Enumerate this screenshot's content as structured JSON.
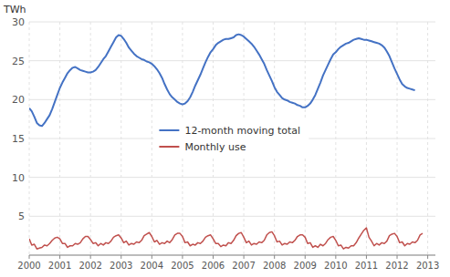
{
  "chart_data": {
    "type": "line",
    "y_label": "TWh",
    "xlim": [
      2000.0,
      2013.25
    ],
    "ylim": [
      0,
      30
    ],
    "xticks": [
      2000,
      2001,
      2002,
      2003,
      2004,
      2005,
      2006,
      2007,
      2008,
      2009,
      2010,
      2011,
      2012,
      2013
    ],
    "yticks": [
      {
        "value": 0,
        "label": null
      },
      5,
      10,
      15,
      20,
      25,
      30
    ],
    "grid": true,
    "legend": "center",
    "series": [
      {
        "name": "12-month moving total",
        "color": "#4472C4",
        "x": [
          2000,
          2000.0833333333,
          2000.1666666667,
          2000.25,
          2000.3333333333,
          2000.4166666667,
          2000.5,
          2000.5833333333,
          2000.6666666667,
          2000.75,
          2000.8333333333,
          2000.9166666667,
          2001,
          2001.0833333333,
          2001.1666666667,
          2001.25,
          2001.3333333333,
          2001.4166666667,
          2001.5,
          2001.5833333333,
          2001.6666666667,
          2001.75,
          2001.8333333333,
          2001.9166666667,
          2002,
          2002.0833333333,
          2002.1666666667,
          2002.25,
          2002.3333333333,
          2002.4166666667,
          2002.5,
          2002.5833333333,
          2002.6666666667,
          2002.75,
          2002.8333333333,
          2002.9166666667,
          2003,
          2003.0833333333,
          2003.1666666667,
          2003.25,
          2003.3333333333,
          2003.4166666667,
          2003.5,
          2003.5833333333,
          2003.6666666667,
          2003.75,
          2003.8333333333,
          2003.9166666667,
          2004,
          2004.0833333333,
          2004.1666666667,
          2004.25,
          2004.3333333333,
          2004.4166666667,
          2004.5,
          2004.5833333333,
          2004.6666666667,
          2004.75,
          2004.8333333333,
          2004.9166666667,
          2005,
          2005.0833333333,
          2005.1666666667,
          2005.25,
          2005.3333333333,
          2005.4166666667,
          2005.5,
          2005.5833333333,
          2005.6666666667,
          2005.75,
          2005.8333333333,
          2005.9166666667,
          2006,
          2006.0833333333,
          2006.1666666667,
          2006.25,
          2006.3333333333,
          2006.4166666667,
          2006.5,
          2006.5833333333,
          2006.6666666667,
          2006.75,
          2006.8333333333,
          2006.9166666667,
          2007,
          2007.0833333333,
          2007.1666666667,
          2007.25,
          2007.3333333333,
          2007.4166666667,
          2007.5,
          2007.5833333333,
          2007.6666666667,
          2007.75,
          2007.8333333333,
          2007.9166666667,
          2008,
          2008.0833333333,
          2008.1666666667,
          2008.25,
          2008.3333333333,
          2008.4166666667,
          2008.5,
          2008.5833333333,
          2008.6666666667,
          2008.75,
          2008.8333333333,
          2008.9166666667,
          2009,
          2009.0833333333,
          2009.1666666667,
          2009.25,
          2009.3333333333,
          2009.4166666667,
          2009.5,
          2009.5833333333,
          2009.6666666667,
          2009.75,
          2009.8333333333,
          2009.9166666667,
          2010,
          2010.0833333333,
          2010.1666666667,
          2010.25,
          2010.3333333333,
          2010.4166666667,
          2010.5,
          2010.5833333333,
          2010.6666666667,
          2010.75,
          2010.8333333333,
          2010.9166666667,
          2011,
          2011.0833333333,
          2011.1666666667,
          2011.25,
          2011.3333333333,
          2011.4166666667,
          2011.5,
          2011.5833333333,
          2011.6666666667,
          2011.75,
          2011.8333333333,
          2011.9166666667,
          2012,
          2012.0833333333,
          2012.1666666667,
          2012.25,
          2012.3333333333,
          2012.4166666667,
          2012.5,
          2012.5833333333
        ],
        "values": [
          18.9,
          18.5,
          17.8,
          17.0,
          16.7,
          16.6,
          17.0,
          17.5,
          18.0,
          18.8,
          19.7,
          20.6,
          21.5,
          22.2,
          22.8,
          23.4,
          23.8,
          24.1,
          24.2,
          24.0,
          23.8,
          23.7,
          23.6,
          23.5,
          23.5,
          23.6,
          23.8,
          24.2,
          24.7,
          25.2,
          25.6,
          26.2,
          26.8,
          27.4,
          28.0,
          28.3,
          28.2,
          27.8,
          27.3,
          26.7,
          26.3,
          25.9,
          25.6,
          25.4,
          25.2,
          25.1,
          24.9,
          24.8,
          24.6,
          24.3,
          23.9,
          23.4,
          22.8,
          22.0,
          21.3,
          20.7,
          20.3,
          20.0,
          19.7,
          19.5,
          19.4,
          19.5,
          19.8,
          20.3,
          21.0,
          21.8,
          22.5,
          23.2,
          24.0,
          24.8,
          25.5,
          26.1,
          26.5,
          27.0,
          27.3,
          27.5,
          27.7,
          27.8,
          27.8,
          27.9,
          28.0,
          28.3,
          28.4,
          28.3,
          28.1,
          27.8,
          27.5,
          27.2,
          26.8,
          26.3,
          25.8,
          25.2,
          24.6,
          23.8,
          23.1,
          22.4,
          21.6,
          21.0,
          20.6,
          20.2,
          20.0,
          19.9,
          19.7,
          19.6,
          19.5,
          19.3,
          19.2,
          19.0,
          19.0,
          19.2,
          19.5,
          20.0,
          20.6,
          21.4,
          22.2,
          23.1,
          23.8,
          24.5,
          25.2,
          25.8,
          26.1,
          26.5,
          26.8,
          27.0,
          27.2,
          27.3,
          27.5,
          27.7,
          27.8,
          27.9,
          27.8,
          27.7,
          27.7,
          27.6,
          27.5,
          27.4,
          27.3,
          27.2,
          27.0,
          26.7,
          26.2,
          25.6,
          24.8,
          24.0,
          23.3,
          22.6,
          22.0,
          21.7,
          21.5,
          21.4,
          21.3,
          21.2
        ]
      },
      {
        "name": "Monthly use",
        "color": "#C0504D",
        "x": [
          2000,
          2000.0833333333,
          2000.1666666667,
          2000.25,
          2000.3333333333,
          2000.4166666667,
          2000.5,
          2000.5833333333,
          2000.6666666667,
          2000.75,
          2000.8333333333,
          2000.9166666667,
          2001,
          2001.0833333333,
          2001.1666666667,
          2001.25,
          2001.3333333333,
          2001.4166666667,
          2001.5,
          2001.5833333333,
          2001.6666666667,
          2001.75,
          2001.8333333333,
          2001.9166666667,
          2002,
          2002.0833333333,
          2002.1666666667,
          2002.25,
          2002.3333333333,
          2002.4166666667,
          2002.5,
          2002.5833333333,
          2002.6666666667,
          2002.75,
          2002.8333333333,
          2002.9166666667,
          2003,
          2003.0833333333,
          2003.1666666667,
          2003.25,
          2003.3333333333,
          2003.4166666667,
          2003.5,
          2003.5833333333,
          2003.6666666667,
          2003.75,
          2003.8333333333,
          2003.9166666667,
          2004,
          2004.0833333333,
          2004.1666666667,
          2004.25,
          2004.3333333333,
          2004.4166666667,
          2004.5,
          2004.5833333333,
          2004.6666666667,
          2004.75,
          2004.8333333333,
          2004.9166666667,
          2005,
          2005.0833333333,
          2005.1666666667,
          2005.25,
          2005.3333333333,
          2005.4166666667,
          2005.5,
          2005.5833333333,
          2005.6666666667,
          2005.75,
          2005.8333333333,
          2005.9166666667,
          2006,
          2006.0833333333,
          2006.1666666667,
          2006.25,
          2006.3333333333,
          2006.4166666667,
          2006.5,
          2006.5833333333,
          2006.6666666667,
          2006.75,
          2006.8333333333,
          2006.9166666667,
          2007,
          2007.0833333333,
          2007.1666666667,
          2007.25,
          2007.3333333333,
          2007.4166666667,
          2007.5,
          2007.5833333333,
          2007.6666666667,
          2007.75,
          2007.8333333333,
          2007.9166666667,
          2008,
          2008.0833333333,
          2008.1666666667,
          2008.25,
          2008.3333333333,
          2008.4166666667,
          2008.5,
          2008.5833333333,
          2008.6666666667,
          2008.75,
          2008.8333333333,
          2008.9166666667,
          2009,
          2009.0833333333,
          2009.1666666667,
          2009.25,
          2009.3333333333,
          2009.4166666667,
          2009.5,
          2009.5833333333,
          2009.6666666667,
          2009.75,
          2009.8333333333,
          2009.9166666667,
          2010,
          2010.0833333333,
          2010.1666666667,
          2010.25,
          2010.3333333333,
          2010.4166666667,
          2010.5,
          2010.5833333333,
          2010.6666666667,
          2010.75,
          2010.8333333333,
          2010.9166666667,
          2011,
          2011.0833333333,
          2011.1666666667,
          2011.25,
          2011.3333333333,
          2011.4166666667,
          2011.5,
          2011.5833333333,
          2011.6666666667,
          2011.75,
          2011.8333333333,
          2011.9166666667,
          2012,
          2012.0833333333,
          2012.1666666667,
          2012.25,
          2012.3333333333,
          2012.4166666667,
          2012.5,
          2012.5833333333,
          2012.6666666667,
          2012.75,
          2012.8333333333
        ],
        "values": [
          2.1,
          1.3,
          1.4,
          0.8,
          0.9,
          1.0,
          1.3,
          1.2,
          1.5,
          1.9,
          2.2,
          2.3,
          2.1,
          1.5,
          1.5,
          1.0,
          1.2,
          1.2,
          1.5,
          1.4,
          1.6,
          2.1,
          2.4,
          2.4,
          2.0,
          1.5,
          1.6,
          1.2,
          1.5,
          1.3,
          1.6,
          1.5,
          1.8,
          2.3,
          2.5,
          2.6,
          2.2,
          1.6,
          1.8,
          1.3,
          1.5,
          1.4,
          1.7,
          1.6,
          1.9,
          2.5,
          2.7,
          2.9,
          2.4,
          1.7,
          1.9,
          1.4,
          1.6,
          1.5,
          1.8,
          1.6,
          2.0,
          2.6,
          2.8,
          2.8,
          2.4,
          1.6,
          1.7,
          1.2,
          1.4,
          1.3,
          1.6,
          1.5,
          1.8,
          2.3,
          2.5,
          2.6,
          2.1,
          1.5,
          1.5,
          1.1,
          1.3,
          1.2,
          1.6,
          1.5,
          1.9,
          2.5,
          2.8,
          2.9,
          2.3,
          1.6,
          1.8,
          1.3,
          1.5,
          1.4,
          1.7,
          1.6,
          1.9,
          2.6,
          2.9,
          3.0,
          2.5,
          1.7,
          1.8,
          1.3,
          1.5,
          1.4,
          1.7,
          1.6,
          1.9,
          2.4,
          2.6,
          2.6,
          2.3,
          1.5,
          1.6,
          1.0,
          1.2,
          1.0,
          1.4,
          1.2,
          1.5,
          2.0,
          2.3,
          2.4,
          1.9,
          1.2,
          1.3,
          0.8,
          1.0,
          0.9,
          1.2,
          1.2,
          1.6,
          2.2,
          2.7,
          3.2,
          3.5,
          2.3,
          1.8,
          1.2,
          1.5,
          1.3,
          1.6,
          1.5,
          1.8,
          2.5,
          2.7,
          2.8,
          2.4,
          1.6,
          1.7,
          1.2,
          1.5,
          1.4,
          1.7,
          1.6,
          1.9,
          2.6,
          2.8
        ]
      }
    ]
  }
}
